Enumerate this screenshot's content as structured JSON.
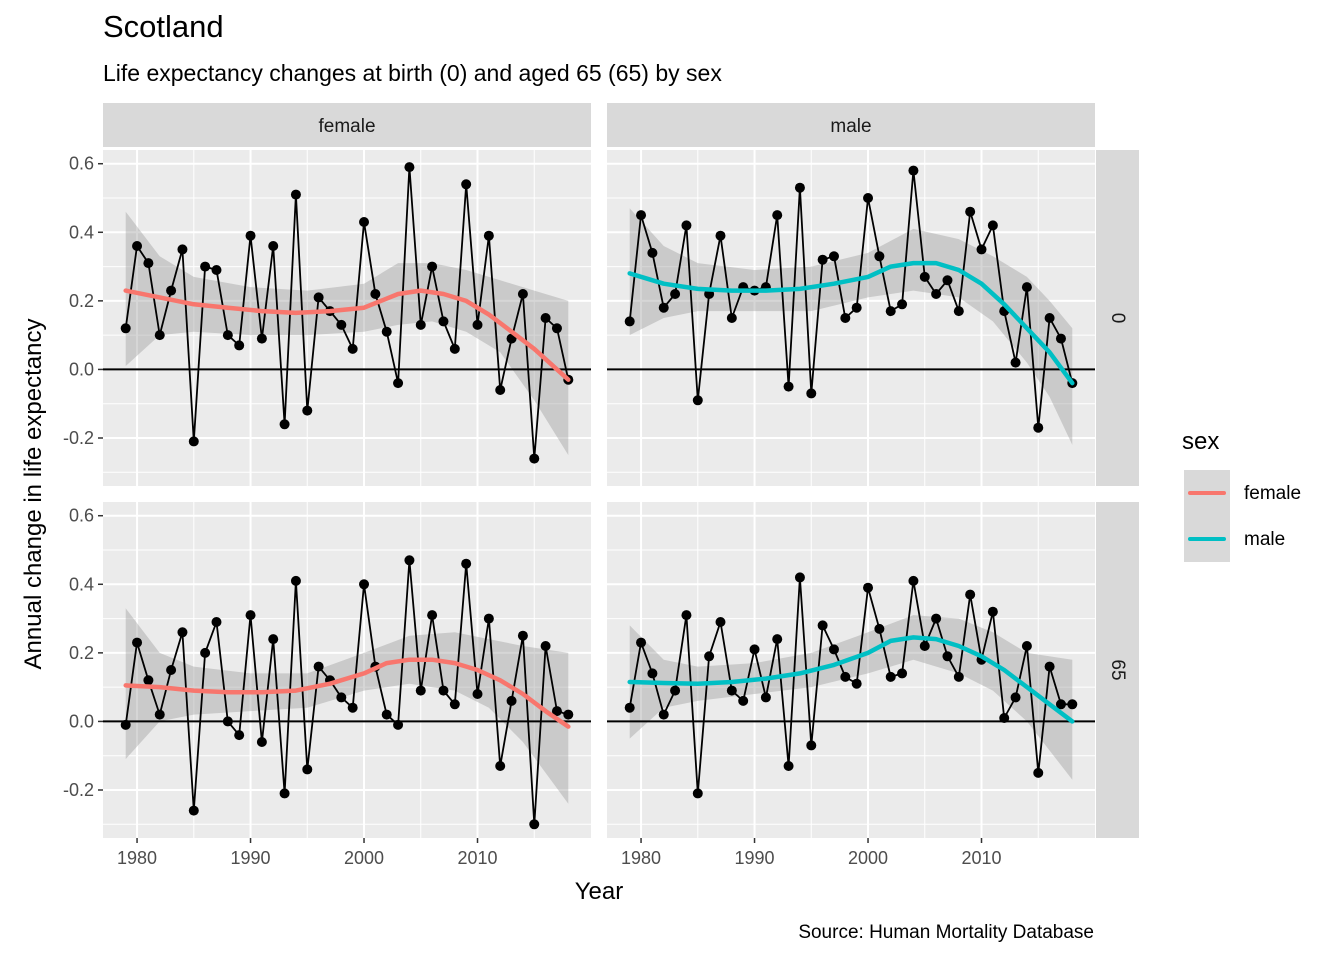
{
  "title": "Scotland",
  "subtitle": "Life expectancy changes at birth (0) and aged 65 (65) by sex",
  "caption": "Source: Human Mortality Database",
  "legend": {
    "title": "sex",
    "items": [
      {
        "label": "female",
        "color": "#f8766d"
      },
      {
        "label": "male",
        "color": "#00bfc4"
      }
    ]
  },
  "chart_data": {
    "type": "line",
    "xlabel": "Year",
    "ylabel": "Annual change in life expectancy",
    "xlim": [
      1977,
      2020
    ],
    "ylim": [
      -0.34,
      0.64
    ],
    "xticks": [
      1980,
      1990,
      2000,
      2010
    ],
    "yticks": [
      -0.2,
      0.0,
      0.2,
      0.4,
      0.6
    ],
    "ytick_labels": [
      "-0.2",
      "0.0",
      "0.2",
      "0.4",
      "0.6"
    ],
    "facet_columns": [
      "female",
      "male"
    ],
    "facet_rows": [
      "0",
      "65"
    ],
    "years": [
      1979,
      1980,
      1981,
      1982,
      1983,
      1984,
      1985,
      1986,
      1987,
      1988,
      1989,
      1990,
      1991,
      1992,
      1993,
      1994,
      1995,
      1996,
      1997,
      1998,
      1999,
      2000,
      2001,
      2002,
      2003,
      2004,
      2005,
      2006,
      2007,
      2008,
      2009,
      2010,
      2011,
      2012,
      2013,
      2014,
      2015,
      2016,
      2017,
      2018
    ],
    "panels": [
      {
        "sex": "female",
        "age": "0",
        "color": "#f8766d",
        "values": [
          0.12,
          0.36,
          0.31,
          0.1,
          0.23,
          0.35,
          -0.21,
          0.3,
          0.29,
          0.1,
          0.07,
          0.39,
          0.09,
          0.36,
          -0.16,
          0.51,
          -0.12,
          0.21,
          0.17,
          0.13,
          0.06,
          0.43,
          0.22,
          0.11,
          -0.04,
          0.59,
          0.13,
          0.3,
          0.14,
          0.06,
          0.54,
          0.13,
          0.39,
          -0.06,
          0.09,
          0.22,
          -0.26,
          0.15,
          0.12,
          -0.03
        ],
        "smooth": [
          [
            1979,
            0.23
          ],
          [
            1982,
            0.21
          ],
          [
            1985,
            0.19
          ],
          [
            1988,
            0.18
          ],
          [
            1991,
            0.17
          ],
          [
            1994,
            0.165
          ],
          [
            1997,
            0.17
          ],
          [
            2000,
            0.18
          ],
          [
            2003,
            0.22
          ],
          [
            2005,
            0.23
          ],
          [
            2007,
            0.22
          ],
          [
            2009,
            0.2
          ],
          [
            2011,
            0.16
          ],
          [
            2013,
            0.11
          ],
          [
            2015,
            0.06
          ],
          [
            2018,
            -0.03
          ]
        ],
        "band_upper": [
          [
            1979,
            0.46
          ],
          [
            1982,
            0.33
          ],
          [
            1985,
            0.27
          ],
          [
            1990,
            0.24
          ],
          [
            1995,
            0.23
          ],
          [
            2000,
            0.25
          ],
          [
            2003,
            0.31
          ],
          [
            2006,
            0.31
          ],
          [
            2009,
            0.29
          ],
          [
            2012,
            0.26
          ],
          [
            2015,
            0.23
          ],
          [
            2018,
            0.2
          ]
        ],
        "band_lower": [
          [
            1979,
            0.01
          ],
          [
            1982,
            0.1
          ],
          [
            1985,
            0.11
          ],
          [
            1990,
            0.1
          ],
          [
            1995,
            0.1
          ],
          [
            2000,
            0.11
          ],
          [
            2003,
            0.13
          ],
          [
            2006,
            0.14
          ],
          [
            2009,
            0.11
          ],
          [
            2012,
            0.05
          ],
          [
            2015,
            -0.09
          ],
          [
            2018,
            -0.25
          ]
        ]
      },
      {
        "sex": "male",
        "age": "0",
        "color": "#00bfc4",
        "values": [
          0.14,
          0.45,
          0.34,
          0.18,
          0.22,
          0.42,
          -0.09,
          0.22,
          0.39,
          0.15,
          0.24,
          0.23,
          0.24,
          0.45,
          -0.05,
          0.53,
          -0.07,
          0.32,
          0.33,
          0.15,
          0.18,
          0.5,
          0.33,
          0.17,
          0.19,
          0.58,
          0.27,
          0.22,
          0.26,
          0.17,
          0.46,
          0.35,
          0.42,
          0.17,
          0.02,
          0.24,
          -0.17,
          0.15,
          0.09,
          -0.04
        ],
        "smooth": [
          [
            1979,
            0.28
          ],
          [
            1982,
            0.25
          ],
          [
            1985,
            0.235
          ],
          [
            1988,
            0.23
          ],
          [
            1991,
            0.23
          ],
          [
            1994,
            0.235
          ],
          [
            1997,
            0.25
          ],
          [
            2000,
            0.27
          ],
          [
            2002,
            0.3
          ],
          [
            2004,
            0.31
          ],
          [
            2006,
            0.31
          ],
          [
            2008,
            0.29
          ],
          [
            2010,
            0.25
          ],
          [
            2012,
            0.19
          ],
          [
            2014,
            0.12
          ],
          [
            2016,
            0.05
          ],
          [
            2018,
            -0.04
          ]
        ],
        "band_upper": [
          [
            1979,
            0.47
          ],
          [
            1982,
            0.36
          ],
          [
            1985,
            0.31
          ],
          [
            1990,
            0.29
          ],
          [
            1995,
            0.3
          ],
          [
            2000,
            0.34
          ],
          [
            2004,
            0.41
          ],
          [
            2008,
            0.38
          ],
          [
            2011,
            0.33
          ],
          [
            2014,
            0.27
          ],
          [
            2016,
            0.2
          ],
          [
            2018,
            0.12
          ]
        ],
        "band_lower": [
          [
            1979,
            0.1
          ],
          [
            1982,
            0.15
          ],
          [
            1985,
            0.17
          ],
          [
            1990,
            0.17
          ],
          [
            1995,
            0.17
          ],
          [
            2000,
            0.21
          ],
          [
            2004,
            0.23
          ],
          [
            2008,
            0.21
          ],
          [
            2011,
            0.14
          ],
          [
            2014,
            0.02
          ],
          [
            2016,
            -0.08
          ],
          [
            2018,
            -0.22
          ]
        ]
      },
      {
        "sex": "female",
        "age": "65",
        "color": "#f8766d",
        "values": [
          -0.01,
          0.23,
          0.12,
          0.02,
          0.15,
          0.26,
          -0.26,
          0.2,
          0.29,
          0.0,
          -0.04,
          0.31,
          -0.06,
          0.24,
          -0.21,
          0.41,
          -0.14,
          0.16,
          0.12,
          0.07,
          0.04,
          0.4,
          0.16,
          0.02,
          -0.01,
          0.47,
          0.09,
          0.31,
          0.09,
          0.05,
          0.46,
          0.08,
          0.3,
          -0.13,
          0.06,
          0.25,
          -0.3,
          0.22,
          0.03,
          0.02
        ],
        "smooth": [
          [
            1979,
            0.105
          ],
          [
            1982,
            0.1
          ],
          [
            1985,
            0.09
          ],
          [
            1988,
            0.085
          ],
          [
            1991,
            0.085
          ],
          [
            1994,
            0.09
          ],
          [
            1997,
            0.11
          ],
          [
            2000,
            0.14
          ],
          [
            2002,
            0.17
          ],
          [
            2004,
            0.18
          ],
          [
            2006,
            0.18
          ],
          [
            2008,
            0.17
          ],
          [
            2010,
            0.15
          ],
          [
            2012,
            0.12
          ],
          [
            2014,
            0.08
          ],
          [
            2016,
            0.03
          ],
          [
            2018,
            -0.015
          ]
        ],
        "band_upper": [
          [
            1979,
            0.33
          ],
          [
            1982,
            0.2
          ],
          [
            1985,
            0.16
          ],
          [
            1990,
            0.14
          ],
          [
            1995,
            0.14
          ],
          [
            2000,
            0.2
          ],
          [
            2004,
            0.25
          ],
          [
            2008,
            0.26
          ],
          [
            2011,
            0.24
          ],
          [
            2014,
            0.22
          ],
          [
            2018,
            0.2
          ]
        ],
        "band_lower": [
          [
            1979,
            -0.11
          ],
          [
            1982,
            0.0
          ],
          [
            1985,
            0.02
          ],
          [
            1990,
            0.03
          ],
          [
            1995,
            0.04
          ],
          [
            2000,
            0.09
          ],
          [
            2004,
            0.11
          ],
          [
            2008,
            0.09
          ],
          [
            2011,
            0.04
          ],
          [
            2014,
            -0.06
          ],
          [
            2018,
            -0.24
          ]
        ]
      },
      {
        "sex": "male",
        "age": "65",
        "color": "#00bfc4",
        "values": [
          0.04,
          0.23,
          0.14,
          0.02,
          0.09,
          0.31,
          -0.21,
          0.19,
          0.29,
          0.09,
          0.06,
          0.21,
          0.07,
          0.24,
          -0.13,
          0.42,
          -0.07,
          0.28,
          0.21,
          0.13,
          0.11,
          0.39,
          0.27,
          0.13,
          0.14,
          0.41,
          0.22,
          0.3,
          0.19,
          0.13,
          0.37,
          0.18,
          0.32,
          0.01,
          0.07,
          0.22,
          -0.15,
          0.16,
          0.05,
          0.05
        ],
        "smooth": [
          [
            1979,
            0.115
          ],
          [
            1982,
            0.112
          ],
          [
            1985,
            0.11
          ],
          [
            1988,
            0.115
          ],
          [
            1991,
            0.125
          ],
          [
            1994,
            0.14
          ],
          [
            1997,
            0.165
          ],
          [
            2000,
            0.2
          ],
          [
            2002,
            0.235
          ],
          [
            2004,
            0.245
          ],
          [
            2006,
            0.24
          ],
          [
            2008,
            0.22
          ],
          [
            2010,
            0.19
          ],
          [
            2012,
            0.15
          ],
          [
            2014,
            0.1
          ],
          [
            2016,
            0.05
          ],
          [
            2018,
            0.0
          ]
        ],
        "band_upper": [
          [
            1979,
            0.28
          ],
          [
            1982,
            0.18
          ],
          [
            1985,
            0.16
          ],
          [
            1990,
            0.17
          ],
          [
            1995,
            0.2
          ],
          [
            2000,
            0.26
          ],
          [
            2004,
            0.31
          ],
          [
            2008,
            0.3
          ],
          [
            2011,
            0.26
          ],
          [
            2014,
            0.2
          ],
          [
            2018,
            0.18
          ]
        ],
        "band_lower": [
          [
            1979,
            -0.05
          ],
          [
            1982,
            0.04
          ],
          [
            1985,
            0.06
          ],
          [
            1990,
            0.08
          ],
          [
            1995,
            0.1
          ],
          [
            2000,
            0.14
          ],
          [
            2004,
            0.18
          ],
          [
            2008,
            0.14
          ],
          [
            2011,
            0.09
          ],
          [
            2014,
            0.0
          ],
          [
            2018,
            -0.17
          ]
        ]
      }
    ]
  }
}
